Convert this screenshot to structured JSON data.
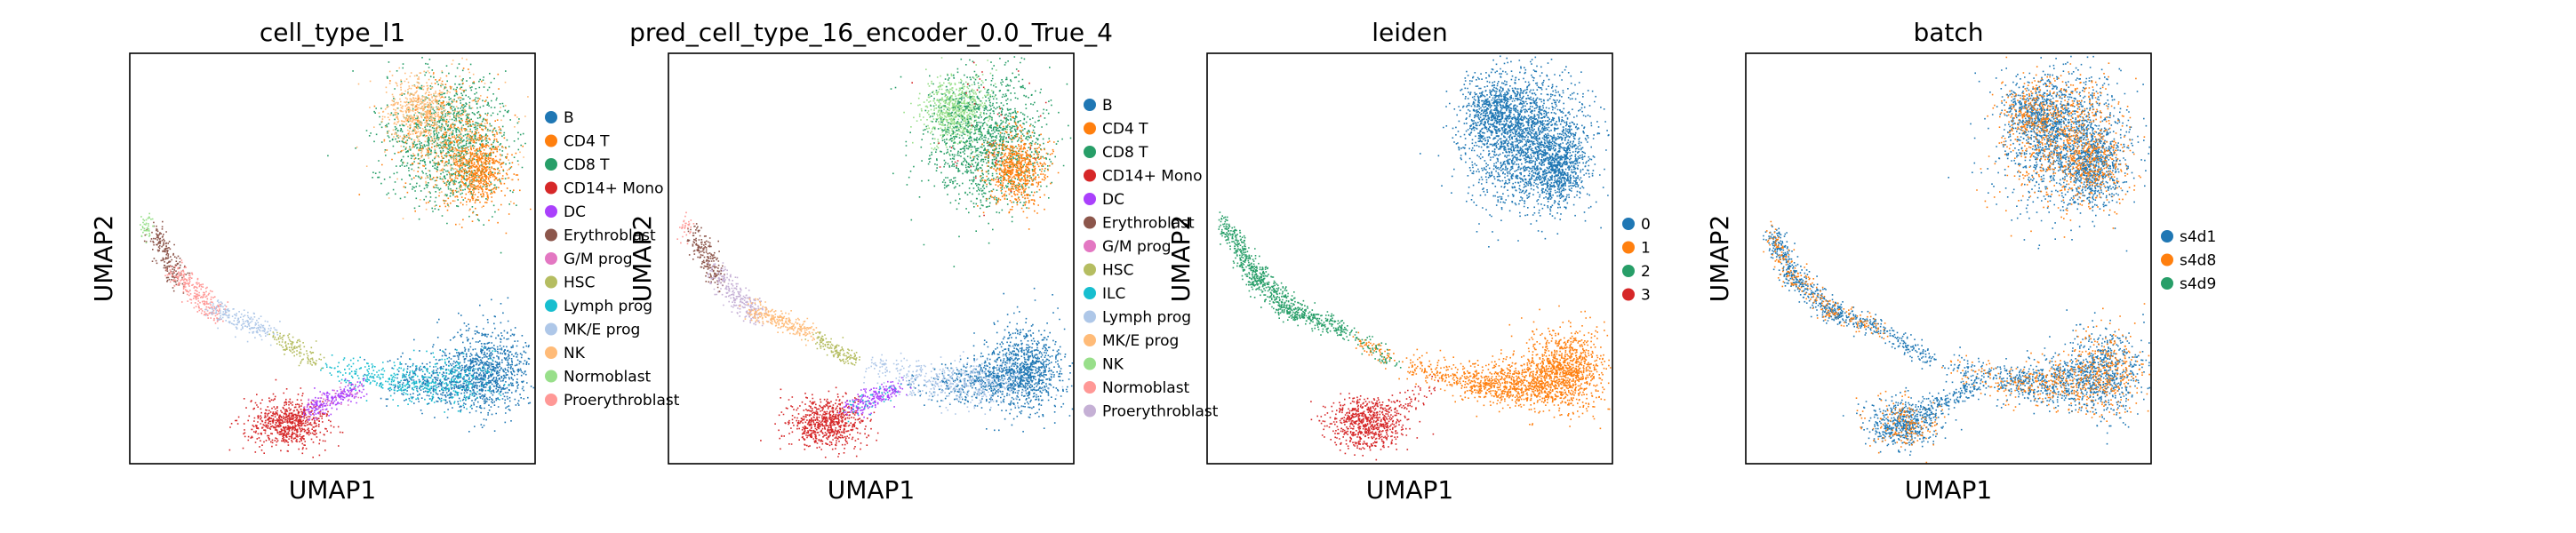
{
  "chart_data": [
    {
      "type": "scatter",
      "title": "cell_type_l1",
      "xlabel": "UMAP1",
      "ylabel": "UMAP2",
      "grid": false,
      "legend": "right",
      "series": [
        {
          "name": "B",
          "color": "#1f77b4"
        },
        {
          "name": "CD4 T",
          "color": "#ff7f0e"
        },
        {
          "name": "CD8 T",
          "color": "#279e68"
        },
        {
          "name": "CD14+ Mono",
          "color": "#d62728"
        },
        {
          "name": "DC",
          "color": "#aa40fc"
        },
        {
          "name": "Erythroblast",
          "color": "#8c564b"
        },
        {
          "name": "G/M prog",
          "color": "#e377c2"
        },
        {
          "name": "HSC",
          "color": "#b5bd61"
        },
        {
          "name": "Lymph prog",
          "color": "#17becf"
        },
        {
          "name": "MK/E prog",
          "color": "#aec7e8"
        },
        {
          "name": "NK",
          "color": "#ffbb78"
        },
        {
          "name": "Normoblast",
          "color": "#98df8a"
        },
        {
          "name": "Proerythroblast",
          "color": "#ff9896"
        }
      ]
    },
    {
      "type": "scatter",
      "title": "pred_cell_type_16_encoder_0.0_True_4",
      "xlabel": "UMAP1",
      "ylabel": "UMAP2",
      "grid": false,
      "legend": "right",
      "series": [
        {
          "name": "B",
          "color": "#1f77b4"
        },
        {
          "name": "CD4 T",
          "color": "#ff7f0e"
        },
        {
          "name": "CD8 T",
          "color": "#279e68"
        },
        {
          "name": "CD14+ Mono",
          "color": "#d62728"
        },
        {
          "name": "DC",
          "color": "#aa40fc"
        },
        {
          "name": "Erythroblast",
          "color": "#8c564b"
        },
        {
          "name": "G/M prog",
          "color": "#e377c2"
        },
        {
          "name": "HSC",
          "color": "#b5bd61"
        },
        {
          "name": "ILC",
          "color": "#17becf"
        },
        {
          "name": "Lymph prog",
          "color": "#aec7e8"
        },
        {
          "name": "MK/E prog",
          "color": "#ffbb78"
        },
        {
          "name": "NK",
          "color": "#98df8a"
        },
        {
          "name": "Normoblast",
          "color": "#ff9896"
        },
        {
          "name": "Proerythroblast",
          "color": "#c5b0d5"
        }
      ]
    },
    {
      "type": "scatter",
      "title": "leiden",
      "xlabel": "UMAP1",
      "ylabel": "UMAP2",
      "grid": false,
      "legend": "right",
      "series": [
        {
          "name": "0",
          "color": "#1f77b4"
        },
        {
          "name": "1",
          "color": "#ff7f0e"
        },
        {
          "name": "2",
          "color": "#279e68"
        },
        {
          "name": "3",
          "color": "#d62728"
        }
      ]
    },
    {
      "type": "scatter",
      "title": "batch",
      "xlabel": "UMAP1",
      "ylabel": "UMAP2",
      "grid": false,
      "legend": "right",
      "series": [
        {
          "name": "s4d1",
          "color": "#1f77b4"
        },
        {
          "name": "s4d8",
          "color": "#ff7f0e"
        },
        {
          "name": "s4d9",
          "color": "#279e68"
        }
      ]
    }
  ]
}
